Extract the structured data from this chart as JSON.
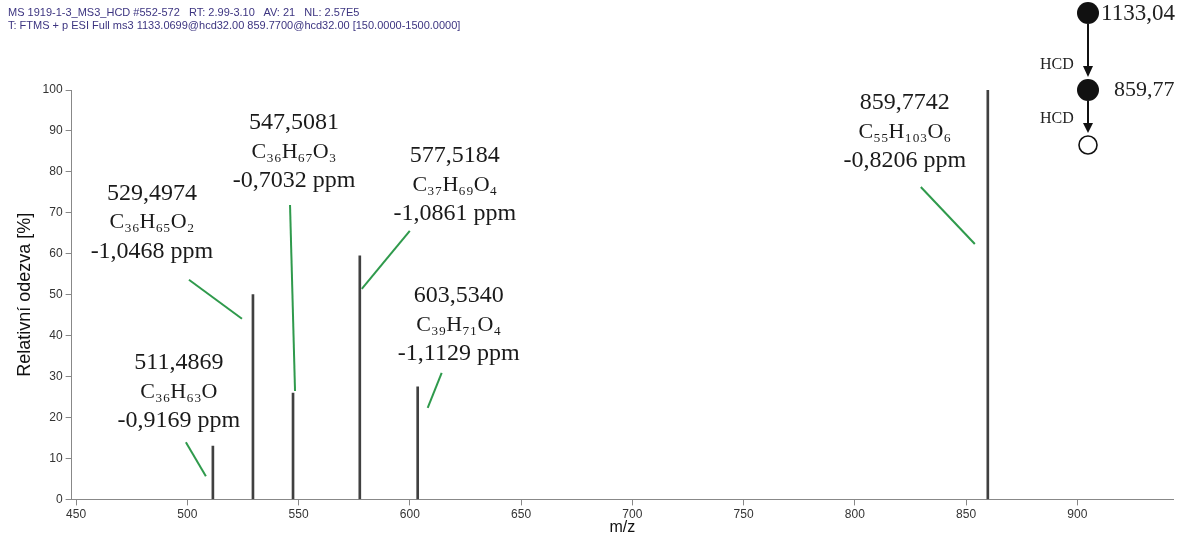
{
  "chart_data": {
    "type": "bar",
    "title": "MS 1919-1-3_MS3_HCD #552-572   RT: 2.99-3.10   AV: 21   NL: 2.57E5",
    "subtitle": "T: FTMS + p ESI Full ms3 1133.0699@hcd32.00 859.7700@hcd32.00 [150.0000-1500.0000]",
    "xlabel": "m/z",
    "ylabel": "Relativní odezva [%]",
    "x": [
      511.4869,
      529.4974,
      547.5081,
      577.5184,
      603.534,
      859.7742
    ],
    "values": [
      13,
      50,
      26,
      59.5,
      27.5,
      100
    ],
    "color": "#404040",
    "xlim": [
      448,
      943
    ],
    "xticks": [
      450,
      500,
      550,
      600,
      650,
      700,
      750,
      800,
      850,
      900
    ],
    "ylim": [
      0,
      100
    ],
    "yticks": [
      0,
      10,
      20,
      30,
      40,
      50,
      60,
      70,
      80,
      90,
      100
    ],
    "grid": false,
    "legend": false,
    "annotations": [
      {
        "text": "511,4869\nC₃₆H₆₃O\n-0,9169 ppm",
        "x": 511.4869,
        "y": 13
      },
      {
        "text": "529,4974\nC₃₆H₆₅O₂\n-1,0468 ppm",
        "x": 529.4974,
        "y": 50
      },
      {
        "text": "547,5081\nC₃₆H₆₇O₃\n-0,7032 ppm",
        "x": 547.5081,
        "y": 26
      },
      {
        "text": "577,5184\nC₃₇H₆₉O₄\n-1,0861 ppm",
        "x": 577.5184,
        "y": 59.5
      },
      {
        "text": "603,5340\nC₃₉H₇₁O₄\n-1,1129 ppm",
        "x": 603.534,
        "y": 27.5
      },
      {
        "text": "859,7742\nC₅₅H₁₀₃O₆\n-0,8206 ppm",
        "x": 859.7742,
        "y": 100
      },
      "1133,04",
      "859,77",
      "HCD",
      "HCD"
    ]
  }
}
